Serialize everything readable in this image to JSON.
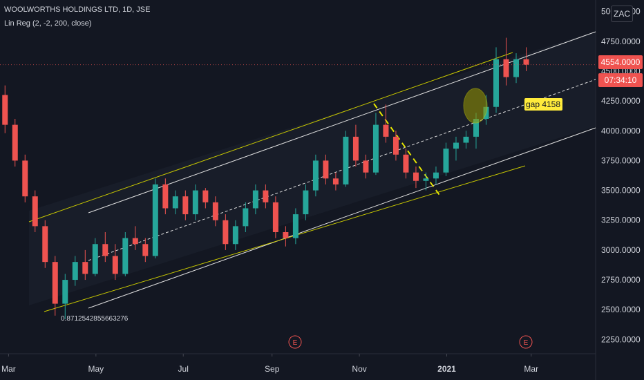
{
  "header": {
    "title": "WOOLWORTHS HOLDINGS LTD, 1D, JSE",
    "indicator": "Lin Reg (2, -2, 200, close)"
  },
  "currency_button": "ZAC",
  "price_label": "4554.0000",
  "countdown_label": "07:34:10",
  "gap_label": "gap 4158",
  "regression_value_label": "0.8712542855663276",
  "earnings_marker": "E",
  "colors": {
    "background": "#131722",
    "up": "#26a69a",
    "down": "#ef5350",
    "trendline": "#c8c800",
    "channel": "#e0e0e0",
    "label_yellow": "#ffeb3b"
  },
  "chart_data": {
    "type": "candlestick",
    "title": "WOOLWORTHS HOLDINGS LTD, 1D, JSE",
    "xlabel": "",
    "ylabel": "",
    "x_ticks": [
      "Mar",
      "May",
      "Jul",
      "Sep",
      "Nov",
      "2021",
      "Mar"
    ],
    "y_ticks": [
      2250,
      2500,
      2750,
      3000,
      3250,
      3500,
      3750,
      4000,
      4250,
      4500,
      4750,
      5000
    ],
    "ylim": [
      2150,
      5050
    ],
    "xlim": [
      "2020-02-24",
      "2021-04-15"
    ],
    "grid": false,
    "last_price": 4554,
    "annotations": [
      "gap 4158",
      "0.8712542855663276",
      "E",
      "E"
    ],
    "series": [
      {
        "weekly_ohlc_from": "2020-02-24",
        "values": [
          [
            4300,
            4380,
            3980,
            4050
          ],
          [
            4050,
            4100,
            3700,
            3750
          ],
          [
            3750,
            3800,
            3400,
            3450
          ],
          [
            3450,
            3500,
            3150,
            3200
          ],
          [
            3200,
            3250,
            2850,
            2900
          ],
          [
            2900,
            2950,
            2450,
            2550
          ],
          [
            2550,
            2800,
            2420,
            2750
          ],
          [
            2750,
            2950,
            2700,
            2900
          ],
          [
            2900,
            3000,
            2750,
            2800
          ],
          [
            2800,
            3100,
            2780,
            3050
          ],
          [
            3050,
            3150,
            2900,
            2950
          ],
          [
            2950,
            3050,
            2750,
            2800
          ],
          [
            2800,
            3150,
            2780,
            3100
          ],
          [
            3100,
            3200,
            3000,
            3050
          ],
          [
            3050,
            3100,
            2900,
            2950
          ],
          [
            2950,
            3600,
            2930,
            3550
          ],
          [
            3550,
            3600,
            3300,
            3350
          ],
          [
            3350,
            3500,
            3300,
            3450
          ],
          [
            3450,
            3500,
            3250,
            3300
          ],
          [
            3300,
            3550,
            3250,
            3500
          ],
          [
            3500,
            3520,
            3350,
            3400
          ],
          [
            3400,
            3450,
            3200,
            3250
          ],
          [
            3250,
            3300,
            3000,
            3050
          ],
          [
            3050,
            3250,
            3000,
            3200
          ],
          [
            3200,
            3400,
            3150,
            3350
          ],
          [
            3350,
            3550,
            3300,
            3500
          ],
          [
            3500,
            3550,
            3350,
            3400
          ],
          [
            3400,
            3450,
            3100,
            3150
          ],
          [
            3150,
            3200,
            3030,
            3100
          ],
          [
            3100,
            3350,
            3050,
            3300
          ],
          [
            3300,
            3550,
            3250,
            3500
          ],
          [
            3500,
            3800,
            3450,
            3750
          ],
          [
            3750,
            3800,
            3550,
            3600
          ],
          [
            3600,
            3650,
            3500,
            3550
          ],
          [
            3550,
            4000,
            3530,
            3950
          ],
          [
            3950,
            4050,
            3700,
            3750
          ],
          [
            3750,
            3800,
            3600,
            3650
          ],
          [
            3650,
            4150,
            3630,
            4050
          ],
          [
            4050,
            4220,
            3900,
            3950
          ],
          [
            3950,
            4000,
            3750,
            3800
          ],
          [
            3800,
            3850,
            3600,
            3650
          ],
          [
            3650,
            3700,
            3520,
            3580
          ],
          [
            3580,
            3650,
            3500,
            3600
          ],
          [
            3600,
            3700,
            3550,
            3650
          ],
          [
            3650,
            3900,
            3620,
            3850
          ],
          [
            3850,
            3950,
            3750,
            3900
          ],
          [
            3900,
            4000,
            3850,
            3950
          ],
          [
            3950,
            4150,
            3850,
            4100
          ],
          [
            4100,
            4300,
            4050,
            4200
          ],
          [
            4200,
            4700,
            4150,
            4600
          ],
          [
            4600,
            4780,
            4380,
            4450
          ],
          [
            4450,
            4650,
            4400,
            4600
          ],
          [
            4600,
            4700,
            4500,
            4554
          ]
        ]
      }
    ]
  }
}
